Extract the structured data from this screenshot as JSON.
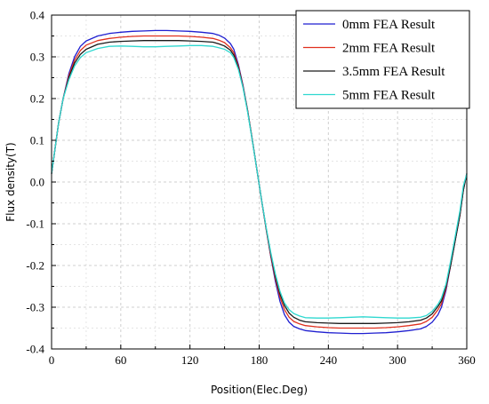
{
  "chart_data": {
    "type": "line",
    "xlabel": "Position(Elec.Deg)",
    "ylabel": "Flux density(T)",
    "xlim": [
      0,
      360
    ],
    "ylim": [
      -0.4,
      0.4
    ],
    "xticks": [
      "0",
      "60",
      "120",
      "180",
      "240",
      "300",
      "360"
    ],
    "yticks": [
      "0.4",
      "0.3",
      "0.2",
      "0.1",
      "0.0",
      "-0.1",
      "-0.2",
      "-0.3",
      "-0.4"
    ],
    "grid": true,
    "legend_position": "top-right",
    "series": [
      {
        "name": "0mm FEA Result",
        "color": "#1f1fd0",
        "x": [
          0,
          3,
          6,
          10,
          15,
          20,
          25,
          30,
          40,
          50,
          60,
          70,
          80,
          90,
          100,
          110,
          120,
          130,
          140,
          145,
          150,
          155,
          158,
          162,
          166,
          170,
          174,
          178,
          182,
          186,
          190,
          194,
          198,
          202,
          206,
          210,
          215,
          220,
          230,
          240,
          250,
          260,
          270,
          280,
          290,
          300,
          310,
          320,
          325,
          330,
          335,
          338,
          342,
          346,
          350,
          354,
          357,
          360
        ],
        "y": [
          0.02,
          0.08,
          0.14,
          0.2,
          0.26,
          0.3,
          0.325,
          0.338,
          0.35,
          0.356,
          0.359,
          0.361,
          0.362,
          0.363,
          0.363,
          0.362,
          0.361,
          0.359,
          0.356,
          0.352,
          0.345,
          0.332,
          0.318,
          0.282,
          0.232,
          0.172,
          0.102,
          0.03,
          -0.042,
          -0.112,
          -0.178,
          -0.238,
          -0.286,
          -0.318,
          -0.336,
          -0.346,
          -0.352,
          -0.356,
          -0.359,
          -0.361,
          -0.362,
          -0.363,
          -0.363,
          -0.362,
          -0.361,
          -0.359,
          -0.356,
          -0.352,
          -0.346,
          -0.336,
          -0.318,
          -0.3,
          -0.26,
          -0.2,
          -0.14,
          -0.08,
          -0.02,
          0.02
        ]
      },
      {
        "name": "2mm FEA Result",
        "color": "#e0301e",
        "x": [
          0,
          3,
          6,
          10,
          15,
          20,
          25,
          30,
          40,
          50,
          60,
          70,
          80,
          90,
          100,
          110,
          120,
          130,
          140,
          145,
          150,
          155,
          158,
          162,
          166,
          170,
          174,
          178,
          182,
          186,
          190,
          194,
          198,
          202,
          206,
          210,
          215,
          220,
          230,
          240,
          250,
          260,
          270,
          280,
          290,
          300,
          310,
          320,
          325,
          330,
          335,
          338,
          342,
          346,
          350,
          354,
          357,
          360
        ],
        "y": [
          0.02,
          0.08,
          0.14,
          0.2,
          0.255,
          0.292,
          0.315,
          0.328,
          0.339,
          0.344,
          0.347,
          0.349,
          0.35,
          0.35,
          0.35,
          0.35,
          0.349,
          0.347,
          0.344,
          0.34,
          0.334,
          0.322,
          0.31,
          0.278,
          0.23,
          0.172,
          0.102,
          0.03,
          -0.042,
          -0.112,
          -0.176,
          -0.232,
          -0.276,
          -0.306,
          -0.324,
          -0.334,
          -0.34,
          -0.344,
          -0.347,
          -0.349,
          -0.35,
          -0.35,
          -0.35,
          -0.35,
          -0.349,
          -0.347,
          -0.344,
          -0.34,
          -0.334,
          -0.324,
          -0.306,
          -0.292,
          -0.255,
          -0.2,
          -0.14,
          -0.08,
          -0.02,
          0.02
        ]
      },
      {
        "name": "3.5mm FEA Result",
        "color": "#1a1a1a",
        "x": [
          0,
          3,
          6,
          10,
          15,
          20,
          25,
          30,
          40,
          50,
          60,
          70,
          80,
          90,
          100,
          110,
          120,
          130,
          140,
          145,
          150,
          155,
          158,
          162,
          166,
          170,
          174,
          178,
          182,
          186,
          190,
          194,
          198,
          202,
          206,
          210,
          215,
          220,
          230,
          240,
          250,
          260,
          270,
          280,
          290,
          300,
          310,
          320,
          325,
          330,
          335,
          338,
          342,
          346,
          350,
          354,
          357,
          360
        ],
        "y": [
          0.02,
          0.08,
          0.14,
          0.2,
          0.25,
          0.285,
          0.306,
          0.318,
          0.33,
          0.335,
          0.337,
          0.338,
          0.339,
          0.339,
          0.339,
          0.339,
          0.338,
          0.337,
          0.335,
          0.331,
          0.326,
          0.316,
          0.304,
          0.274,
          0.228,
          0.17,
          0.102,
          0.03,
          -0.042,
          -0.11,
          -0.172,
          -0.226,
          -0.268,
          -0.296,
          -0.314,
          -0.324,
          -0.331,
          -0.335,
          -0.337,
          -0.338,
          -0.339,
          -0.339,
          -0.339,
          -0.339,
          -0.338,
          -0.337,
          -0.335,
          -0.331,
          -0.326,
          -0.316,
          -0.298,
          -0.285,
          -0.25,
          -0.2,
          -0.14,
          -0.08,
          -0.02,
          0.02
        ]
      },
      {
        "name": "5mm FEA Result",
        "color": "#2fd8d0",
        "x": [
          0,
          3,
          6,
          10,
          15,
          20,
          25,
          30,
          40,
          50,
          60,
          70,
          80,
          90,
          100,
          110,
          120,
          130,
          140,
          145,
          150,
          155,
          158,
          162,
          166,
          170,
          174,
          178,
          182,
          186,
          190,
          194,
          198,
          202,
          206,
          210,
          215,
          220,
          230,
          240,
          250,
          260,
          270,
          280,
          290,
          300,
          310,
          320,
          325,
          330,
          335,
          338,
          342,
          346,
          350,
          354,
          357,
          360
        ],
        "y": [
          0.02,
          0.08,
          0.14,
          0.2,
          0.245,
          0.278,
          0.298,
          0.31,
          0.32,
          0.325,
          0.326,
          0.325,
          0.324,
          0.324,
          0.325,
          0.326,
          0.327,
          0.327,
          0.325,
          0.322,
          0.318,
          0.31,
          0.298,
          0.27,
          0.226,
          0.168,
          0.1,
          0.03,
          -0.042,
          -0.108,
          -0.168,
          -0.22,
          -0.262,
          -0.29,
          -0.306,
          -0.315,
          -0.321,
          -0.325,
          -0.326,
          -0.326,
          -0.325,
          -0.324,
          -0.323,
          -0.324,
          -0.325,
          -0.326,
          -0.326,
          -0.324,
          -0.32,
          -0.31,
          -0.293,
          -0.278,
          -0.245,
          -0.19,
          -0.13,
          -0.07,
          -0.01,
          0.02
        ]
      }
    ]
  }
}
